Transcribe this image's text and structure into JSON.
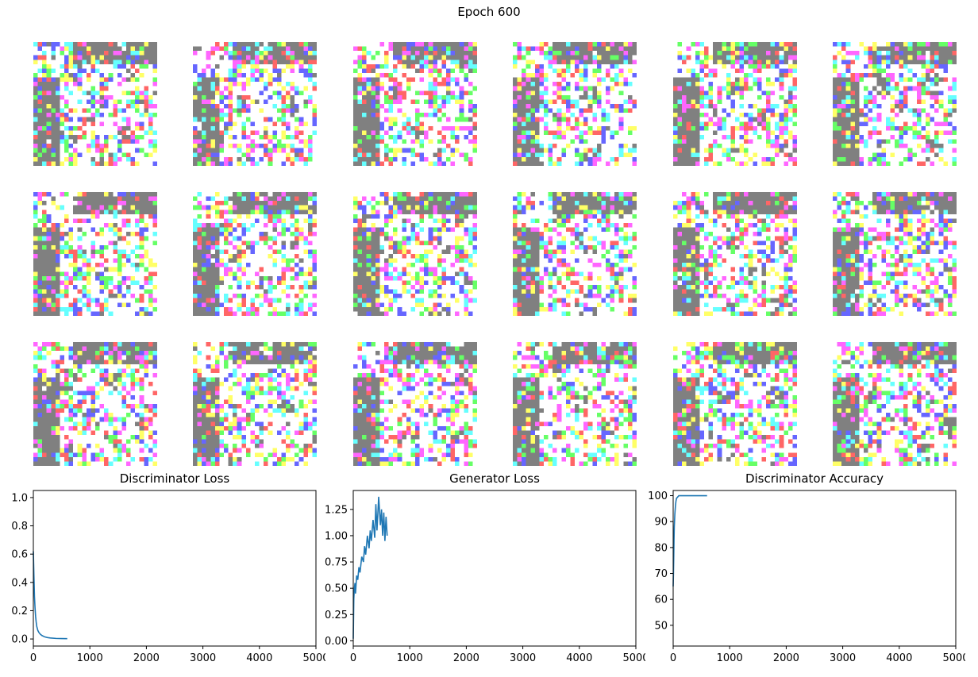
{
  "figure": {
    "suptitle": "Epoch 600"
  },
  "sample_grid": {
    "rows": 3,
    "cols": 6,
    "pixels_per_side": 28,
    "palette": [
      "#808080",
      "#ffffff",
      "#ff66ff",
      "#66ffff",
      "#ffff66",
      "#66ff66",
      "#6666ff",
      "#ff6666"
    ]
  },
  "chart_data": [
    {
      "type": "line",
      "title": "Discriminator Loss",
      "xlim": [
        0,
        5000
      ],
      "ylim": [
        -0.05,
        1.05
      ],
      "xticks": [
        0,
        1000,
        2000,
        3000,
        4000,
        5000
      ],
      "yticks": [
        0.0,
        0.2,
        0.4,
        0.6,
        0.8,
        1.0
      ],
      "xticklabels": [
        "0",
        "1000",
        "2000",
        "3000",
        "4000",
        "5000"
      ],
      "yticklabels": [
        "0.0",
        "0.2",
        "0.4",
        "0.6",
        "0.8",
        "1.0"
      ],
      "color": "#1f77b4",
      "series": [
        {
          "x": [
            0,
            10,
            20,
            30,
            40,
            50,
            60,
            80,
            100,
            120,
            150,
            200,
            250,
            300,
            400,
            500,
            600
          ],
          "y": [
            0.62,
            0.45,
            0.3,
            0.22,
            0.16,
            0.12,
            0.09,
            0.06,
            0.045,
            0.035,
            0.025,
            0.015,
            0.01,
            0.007,
            0.004,
            0.003,
            0.002
          ]
        }
      ]
    },
    {
      "type": "line",
      "title": "Generator Loss",
      "xlim": [
        0,
        5000
      ],
      "ylim": [
        -0.05,
        1.43
      ],
      "xticks": [
        0,
        1000,
        2000,
        3000,
        4000,
        5000
      ],
      "yticks": [
        0.0,
        0.25,
        0.5,
        0.75,
        1.0,
        1.25
      ],
      "xticklabels": [
        "0",
        "1000",
        "2000",
        "3000",
        "4000",
        "5000"
      ],
      "yticklabels": [
        "0.00",
        "0.25",
        "0.50",
        "0.75",
        "1.00",
        "1.25"
      ],
      "color": "#1f77b4",
      "series": [
        {
          "x": [
            0,
            10,
            20,
            30,
            40,
            60,
            80,
            100,
            120,
            150,
            180,
            200,
            220,
            250,
            280,
            300,
            320,
            350,
            380,
            400,
            420,
            450,
            480,
            500,
            520,
            540,
            560,
            580,
            600
          ],
          "y": [
            0.02,
            0.4,
            0.5,
            0.55,
            0.45,
            0.62,
            0.58,
            0.7,
            0.65,
            0.8,
            0.75,
            0.9,
            0.82,
            1.0,
            0.88,
            1.05,
            0.95,
            1.15,
            0.98,
            1.3,
            1.05,
            1.37,
            1.1,
            1.25,
            1.0,
            1.22,
            0.95,
            1.18,
            1.0
          ]
        }
      ]
    },
    {
      "type": "line",
      "title": "Discriminator Accuracy",
      "xlim": [
        0,
        5000
      ],
      "ylim": [
        42,
        102
      ],
      "xticks": [
        0,
        1000,
        2000,
        3000,
        4000,
        5000
      ],
      "yticks": [
        50,
        60,
        70,
        80,
        90,
        100
      ],
      "xticklabels": [
        "0",
        "1000",
        "2000",
        "3000",
        "4000",
        "5000"
      ],
      "yticklabels": [
        "50",
        "60",
        "70",
        "80",
        "90",
        "100"
      ],
      "color": "#1f77b4",
      "series": [
        {
          "x": [
            0,
            5,
            10,
            15,
            20,
            30,
            40,
            50,
            60,
            80,
            100,
            150,
            200,
            300,
            400,
            500,
            600
          ],
          "y": [
            65,
            70,
            76,
            83,
            88,
            93,
            96,
            98,
            99,
            99.5,
            100,
            100,
            100,
            100,
            100,
            100,
            100
          ]
        }
      ]
    }
  ]
}
